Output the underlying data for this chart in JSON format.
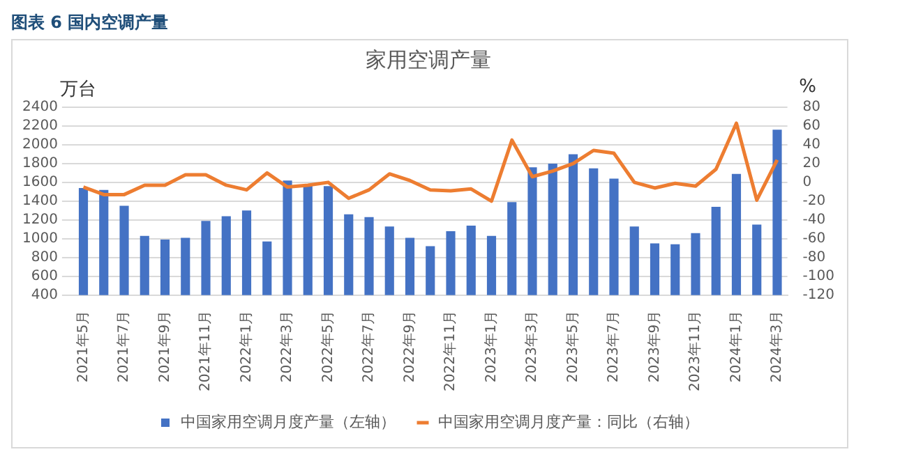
{
  "chart_data": {
    "type": "bar",
    "title": "家用空调产量",
    "ylabel": "万台",
    "y2label": "%",
    "annotations": [
      "图表 6 国内空调产量"
    ],
    "categories": [
      "2021年5月",
      null,
      "2021年7月",
      null,
      "2021年9月",
      null,
      "2021年11月",
      null,
      "2022年1月",
      null,
      "2022年3月",
      null,
      "2022年5月",
      null,
      "2022年7月",
      null,
      "2022年9月",
      null,
      "2022年11月",
      null,
      "2023年1月",
      null,
      "2023年3月",
      null,
      "2023年5月",
      null,
      "2023年7月",
      null,
      "2023年9月",
      null,
      "2023年11月",
      null,
      "2024年1月",
      null,
      "2024年3月"
    ],
    "series": [
      {
        "name": "中国家用空调月度产量（左轴）",
        "color": "#4472c4",
        "values": [
          1540,
          1520,
          1350,
          1030,
          990,
          1010,
          1190,
          1240,
          1300,
          970,
          1620,
          1580,
          1560,
          1260,
          1230,
          1130,
          1010,
          920,
          1080,
          1140,
          1030,
          1390,
          1760,
          1800,
          1900,
          1750,
          1640,
          1130,
          950,
          940,
          1060,
          1340,
          1690,
          1150,
          2160
        ]
      },
      {
        "name": "中国家用空调月度产量：同比（右轴）",
        "type": "line",
        "axis": "y2",
        "color": "#ed7d31",
        "values": [
          -5,
          -13,
          -13,
          -3,
          -3,
          8,
          8,
          -3,
          -8,
          10,
          -5,
          -3,
          0,
          -17,
          -8,
          9,
          2,
          -8,
          -9,
          -7,
          -20,
          45,
          6,
          12,
          20,
          34,
          31,
          0,
          -6,
          -1,
          -4,
          14,
          63,
          -19,
          24
        ]
      }
    ],
    "ylim": [
      400,
      2400
    ],
    "yticks": [
      400,
      600,
      800,
      1000,
      1200,
      1400,
      1600,
      1800,
      2000,
      2200,
      2400
    ],
    "y2lim": [
      -120,
      80
    ],
    "y2ticks": [
      -120,
      -100,
      -80,
      -60,
      -40,
      -20,
      0,
      20,
      40,
      60,
      80
    ],
    "grid": "y",
    "legend": "bottom"
  }
}
